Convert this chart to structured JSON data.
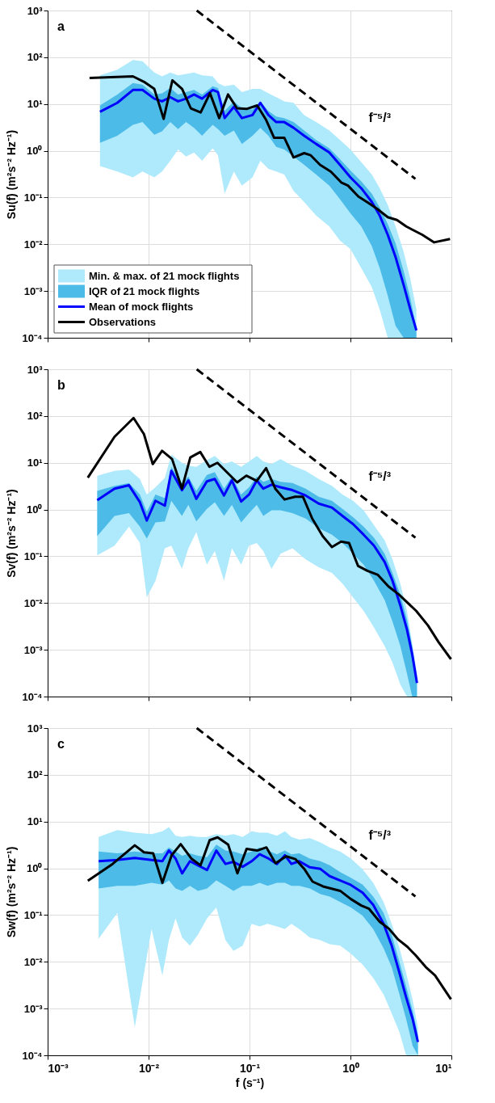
{
  "chart_data": [
    {
      "type": "line",
      "title": "a",
      "ylabel": "Su(f) (m²s⁻² Hz⁻¹)",
      "log": "xy",
      "grid": true,
      "tick_labels": "y",
      "legend": "bottom left",
      "xlim": [
        0.001,
        10
      ],
      "ylim": [
        0.0001,
        1000
      ],
      "xticks": [
        {
          "value": 0.001,
          "label": null
        },
        {
          "value": 0.01,
          "label": null
        },
        {
          "value": 0.1,
          "label": null
        },
        {
          "value": 1,
          "label": null
        },
        {
          "value": 10,
          "label": null
        }
      ],
      "yticks": [
        {
          "value": 0.0001,
          "label": "10⁻⁴"
        },
        {
          "value": 0.001,
          "label": "10⁻³"
        },
        {
          "value": 0.01,
          "label": "10⁻²"
        },
        {
          "value": 0.1,
          "label": "10⁻¹"
        },
        {
          "value": 1,
          "label": "10⁰"
        },
        {
          "value": 10,
          "label": "10¹"
        },
        {
          "value": 100,
          "label": "10²"
        },
        {
          "value": 1000,
          "label": "10³"
        }
      ],
      "series": [
        {
          "name": "Min. & max. of 21 mock flights",
          "type": "area",
          "color": "#aeeafc",
          "x": [
            0.0033,
            0.0049,
            0.007,
            0.0087,
            0.0114,
            0.0136,
            0.0164,
            0.0196,
            0.0235,
            0.0282,
            0.0339,
            0.0432,
            0.0487,
            0.0567,
            0.07,
            0.084,
            0.107,
            0.128,
            0.154,
            0.184,
            0.221,
            0.273,
            0.348,
            0.457,
            0.618,
            0.787,
            1.0,
            1.28,
            1.63,
            1.95,
            2.34,
            2.8,
            3.36,
            3.92,
            4.5
          ],
          "values": [
            null,
            null,
            null,
            null,
            null,
            null,
            null,
            null,
            null,
            null,
            null,
            null,
            null,
            null,
            null,
            null,
            null,
            null,
            null,
            null,
            null,
            null,
            null,
            null,
            null,
            null,
            null,
            null,
            null,
            null,
            null,
            null,
            null,
            null,
            null
          ],
          "upper": [
            41,
            54,
            87,
            82,
            47,
            39,
            47,
            41,
            44,
            47,
            41,
            39,
            28,
            24,
            26,
            18,
            21,
            21,
            17,
            14,
            11.4,
            10.6,
            5.8,
            4.1,
            2.7,
            1.7,
            1.06,
            0.57,
            0.31,
            0.158,
            0.07,
            0.024,
            0.0069,
            0.0018,
            0.0004
          ],
          "lower": [
            0.47,
            0.36,
            0.27,
            0.36,
            0.27,
            0.36,
            0.61,
            1.06,
            0.75,
            0.92,
            0.61,
            1.13,
            0.8,
            0.12,
            0.36,
            0.18,
            0.27,
            0.61,
            0.41,
            0.36,
            0.31,
            0.138,
            0.08,
            0.041,
            0.024,
            0.012,
            0.0079,
            0.0031,
            0.0012,
            0.0004,
            0.0001,
            0.0001,
            0.0001,
            0.0001,
            0.0001
          ]
        },
        {
          "name": "IQR of 21 mock flights",
          "type": "area",
          "color": "#4dbbe8",
          "x": [
            0.0033,
            0.0049,
            0.007,
            0.0087,
            0.0114,
            0.0136,
            0.0164,
            0.0196,
            0.0235,
            0.0282,
            0.0339,
            0.0432,
            0.0487,
            0.0567,
            0.07,
            0.084,
            0.107,
            0.128,
            0.154,
            0.184,
            0.221,
            0.273,
            0.348,
            0.457,
            0.618,
            0.787,
            1.0,
            1.28,
            1.63,
            1.95,
            2.34,
            2.8,
            3.36,
            3.92,
            4.5
          ],
          "values": [
            null,
            null,
            null,
            null,
            null,
            null,
            null,
            null,
            null,
            null,
            null,
            null,
            null,
            null,
            null,
            null,
            null,
            null,
            null,
            null,
            null,
            null,
            null,
            null,
            null,
            null,
            null,
            null,
            null,
            null,
            null,
            null,
            null,
            null,
            null
          ],
          "upper": [
            9.3,
            16,
            28,
            26,
            16,
            17,
            22,
            16,
            18,
            20,
            16,
            24,
            22,
            7.1,
            11.4,
            8.1,
            7.6,
            11.4,
            7.1,
            5.4,
            5.0,
            4.1,
            2.7,
            1.7,
            1.13,
            0.66,
            0.38,
            0.22,
            0.12,
            0.061,
            0.027,
            0.0104,
            0.0027,
            0.0007,
            0.000155
          ],
          "lower": [
            1.48,
            2.1,
            3.6,
            4.1,
            2.2,
            2.6,
            4.1,
            2.9,
            4.1,
            3.1,
            2.1,
            3.6,
            2.9,
            2.1,
            2.7,
            1.39,
            2.1,
            3.1,
            2.1,
            1.21,
            1.06,
            0.75,
            0.5,
            0.31,
            0.18,
            0.092,
            0.046,
            0.024,
            0.0091,
            0.0031,
            0.0008,
            0.00018,
            0.0001,
            0.0001,
            0.0001
          ]
        },
        {
          "name": "Mean of mock flights",
          "type": "line",
          "color": "#0000ff",
          "x": [
            0.0033,
            0.0049,
            0.007,
            0.0087,
            0.0114,
            0.0136,
            0.0164,
            0.0196,
            0.0235,
            0.0282,
            0.0339,
            0.0432,
            0.0487,
            0.0567,
            0.07,
            0.084,
            0.107,
            0.128,
            0.154,
            0.184,
            0.221,
            0.273,
            0.348,
            0.457,
            0.618,
            0.787,
            1.0,
            1.28,
            1.63,
            1.95,
            2.34,
            2.8,
            3.36,
            3.92,
            4.5
          ],
          "values": [
            6.8,
            10.6,
            20,
            20,
            13,
            11.4,
            14,
            11.4,
            13,
            16,
            13,
            20,
            18,
            5.0,
            8.7,
            5.0,
            5.8,
            10.6,
            5.8,
            4.1,
            4.1,
            3.1,
            2.1,
            1.4,
            0.92,
            0.5,
            0.27,
            0.158,
            0.08,
            0.041,
            0.016,
            0.0053,
            0.00136,
            0.0004,
            0.000144
          ]
        },
        {
          "name": "Observations",
          "type": "line",
          "color": "#000000",
          "x": [
            0.0026,
            0.007,
            0.0092,
            0.0114,
            0.0141,
            0.0172,
            0.0215,
            0.0262,
            0.0328,
            0.0406,
            0.0501,
            0.0612,
            0.0752,
            0.0946,
            0.119,
            0.145,
            0.175,
            0.221,
            0.273,
            0.348,
            0.404,
            0.5,
            0.637,
            0.811,
            0.944,
            1.2,
            1.49,
            1.84,
            2.34,
            2.89,
            3.57,
            5.14,
            6.75,
            9.7
          ],
          "values": [
            36,
            39,
            29,
            21,
            4.8,
            32,
            21,
            8.1,
            6.6,
            17,
            5.0,
            16,
            8.1,
            7.9,
            9.3,
            4.7,
            1.9,
            1.9,
            0.72,
            0.89,
            0.8,
            0.5,
            0.36,
            0.21,
            0.18,
            0.105,
            0.078,
            0.057,
            0.038,
            0.033,
            0.024,
            0.016,
            0.011,
            0.013
          ]
        },
        {
          "name": "f⁻⁵/³",
          "type": "line",
          "color": "#000000",
          "line_style": "dashed",
          "x": [
            0.03,
            4.4
          ],
          "values": [
            1000,
            0.25
          ]
        }
      ]
    },
    {
      "type": "line",
      "title": "b",
      "ylabel": "Sv(f) (m²s⁻² Hz⁻¹)",
      "log": "xy",
      "grid": true,
      "tick_labels": "y",
      "xlim": [
        0.001,
        10
      ],
      "ylim": [
        0.0001,
        1000
      ],
      "xticks": [
        {
          "value": 0.001,
          "label": null
        },
        {
          "value": 0.01,
          "label": null
        },
        {
          "value": 0.1,
          "label": null
        },
        {
          "value": 1,
          "label": null
        },
        {
          "value": 10,
          "label": null
        }
      ],
      "yticks": [
        {
          "value": 0.0001,
          "label": "10⁻⁴"
        },
        {
          "value": 0.001,
          "label": "10⁻³"
        },
        {
          "value": 0.01,
          "label": "10⁻²"
        },
        {
          "value": 0.1,
          "label": "10⁻¹"
        },
        {
          "value": 1,
          "label": "10⁰"
        },
        {
          "value": 10,
          "label": "10¹"
        },
        {
          "value": 100,
          "label": "10²"
        },
        {
          "value": 1000,
          "label": "10³"
        }
      ],
      "series": [
        {
          "type": "area",
          "color": "#aeeafc",
          "x": [
            0.0031,
            0.0046,
            0.0064,
            0.0082,
            0.0096,
            0.0117,
            0.0145,
            0.0168,
            0.0214,
            0.0248,
            0.0297,
            0.0378,
            0.0453,
            0.0559,
            0.0669,
            0.0826,
            0.099,
            0.118,
            0.137,
            0.165,
            0.203,
            0.266,
            0.36,
            0.485,
            0.655,
            0.834,
            1.06,
            1.35,
            1.71,
            2.18,
            2.61,
            3.12,
            3.63,
            4.09,
            4.56
          ],
          "values": [
            null,
            null,
            null,
            null,
            null,
            null,
            null,
            null,
            null,
            null,
            null,
            null,
            null,
            null,
            null,
            null,
            null,
            null,
            null,
            null,
            null,
            null,
            null,
            null,
            null,
            null,
            null,
            null,
            null,
            null,
            null,
            null,
            null,
            null,
            null
          ],
          "upper": [
            5.3,
            6.7,
            7.2,
            4.5,
            2.1,
            3.0,
            4.8,
            15,
            10,
            8.7,
            8.2,
            11.4,
            14,
            9.4,
            10.7,
            8.2,
            10.7,
            14,
            10.7,
            9.4,
            12,
            8.7,
            6.7,
            4.5,
            3.2,
            2.1,
            1.54,
            0.96,
            0.46,
            0.22,
            0.086,
            0.026,
            0.0068,
            0.00136,
            0.00031
          ],
          "lower": [
            0.105,
            0.169,
            0.43,
            0.193,
            0.0132,
            0.03,
            0.148,
            0.169,
            0.054,
            0.148,
            0.33,
            0.066,
            0.129,
            0.03,
            0.148,
            0.066,
            0.169,
            0.193,
            0.129,
            0.054,
            0.113,
            0.148,
            0.086,
            0.058,
            0.044,
            0.026,
            0.0132,
            0.0068,
            0.003,
            0.0012,
            0.00053,
            0.00018,
            0.0001,
            0.0001,
            0.0001
          ]
        },
        {
          "type": "area",
          "color": "#4dbbe8",
          "x": [
            0.0031,
            0.0046,
            0.0064,
            0.0082,
            0.0096,
            0.0117,
            0.0145,
            0.0168,
            0.0214,
            0.0248,
            0.0297,
            0.0378,
            0.0453,
            0.0559,
            0.0669,
            0.0826,
            0.099,
            0.118,
            0.137,
            0.165,
            0.203,
            0.266,
            0.36,
            0.485,
            0.655,
            0.834,
            1.06,
            1.35,
            1.71,
            2.18,
            2.61,
            3.12,
            3.63,
            4.09,
            4.56
          ],
          "values": [
            null,
            null,
            null,
            null,
            null,
            null,
            null,
            null,
            null,
            null,
            null,
            null,
            null,
            null,
            null,
            null,
            null,
            null,
            null,
            null,
            null,
            null,
            null,
            null,
            null,
            null,
            null,
            null,
            null,
            null,
            null,
            null,
            null,
            null,
            null
          ],
          "upper": [
            2.5,
            3.2,
            3.7,
            2.1,
            0.9,
            2.1,
            1.75,
            8.2,
            3.7,
            5.1,
            2.5,
            5.5,
            6.3,
            2.8,
            5.1,
            2.1,
            3.0,
            5.1,
            3.9,
            4.5,
            3.9,
            3.7,
            2.8,
            1.88,
            1.54,
            1.03,
            0.69,
            0.43,
            0.25,
            0.113,
            0.044,
            0.0151,
            0.0045,
            0.0012,
            0.00024
          ],
          "lower": [
            0.27,
            0.73,
            0.84,
            0.43,
            0.24,
            0.53,
            0.56,
            1.54,
            0.73,
            1.26,
            0.56,
            1.03,
            1.44,
            0.73,
            1.26,
            0.53,
            0.84,
            1.26,
            0.73,
            0.96,
            0.96,
            0.84,
            0.64,
            0.4,
            0.29,
            0.193,
            0.113,
            0.066,
            0.03,
            0.0116,
            0.004,
            0.0012,
            0.00031,
            0.0001,
            0.0001
          ]
        },
        {
          "type": "line",
          "color": "#0000ff",
          "x": [
            0.0031,
            0.0046,
            0.0064,
            0.0082,
            0.0096,
            0.0117,
            0.0145,
            0.0168,
            0.0214,
            0.0248,
            0.0297,
            0.0378,
            0.0453,
            0.0559,
            0.0669,
            0.0826,
            0.099,
            0.118,
            0.137,
            0.165,
            0.203,
            0.266,
            0.36,
            0.485,
            0.655,
            0.834,
            1.06,
            1.35,
            1.71,
            2.18,
            2.61,
            3.12,
            3.63,
            4.09,
            4.56
          ],
          "values": [
            1.58,
            2.8,
            3.3,
            1.44,
            0.58,
            1.54,
            1.21,
            6.7,
            2.6,
            4.2,
            1.69,
            4.0,
            4.5,
            2.0,
            4.2,
            1.48,
            2.1,
            4.2,
            2.8,
            3.4,
            3.0,
            2.6,
            2.0,
            1.34,
            1.1,
            0.73,
            0.49,
            0.29,
            0.169,
            0.076,
            0.03,
            0.0089,
            0.0027,
            0.0008,
            0.000195
          ]
        },
        {
          "type": "line",
          "color": "#000000",
          "x": [
            0.0025,
            0.0046,
            0.0071,
            0.009,
            0.011,
            0.0136,
            0.0171,
            0.0214,
            0.0259,
            0.0325,
            0.0401,
            0.0481,
            0.0755,
            0.093,
            0.118,
            0.146,
            0.18,
            0.222,
            0.283,
            0.338,
            0.418,
            0.531,
            0.655,
            0.807,
            0.968,
            1.19,
            1.47,
            1.87,
            2.38,
            3.03,
            4.48,
            5.87,
            7.46,
            9.9
          ],
          "values": [
            4.8,
            36,
            91,
            41,
            9.4,
            18,
            12,
            2.8,
            13,
            17,
            8.2,
            10,
            3.8,
            5.3,
            4.1,
            7.7,
            2.8,
            1.64,
            1.88,
            1.88,
            0.64,
            0.27,
            0.158,
            0.206,
            0.193,
            0.062,
            0.049,
            0.04,
            0.0226,
            0.0151,
            0.0068,
            0.0033,
            0.00146,
            0.00063
          ]
        },
        {
          "name": "f⁻⁵/³",
          "type": "line",
          "color": "#000000",
          "line_style": "dashed",
          "x": [
            0.03,
            4.4
          ],
          "values": [
            1000,
            0.25
          ]
        }
      ]
    },
    {
      "type": "line",
      "title": "c",
      "xlabel": "f (s⁻¹)",
      "ylabel": "Sw(f) (m²s⁻² Hz⁻¹)",
      "log": "xy",
      "grid": true,
      "xlim": [
        0.001,
        10
      ],
      "ylim": [
        0.0001,
        1000
      ],
      "xticks": [
        {
          "value": 0.001,
          "label": "10⁻³"
        },
        {
          "value": 0.01,
          "label": "10⁻²"
        },
        {
          "value": 0.1,
          "label": "10⁻¹"
        },
        {
          "value": 1,
          "label": "10⁰"
        },
        {
          "value": 10,
          "label": "10¹"
        }
      ],
      "yticks": [
        {
          "value": 0.0001,
          "label": "10⁻⁴"
        },
        {
          "value": 0.001,
          "label": "10⁻³"
        },
        {
          "value": 0.01,
          "label": "10⁻²"
        },
        {
          "value": 0.1,
          "label": "10⁻¹"
        },
        {
          "value": 1,
          "label": "10⁰"
        },
        {
          "value": 10,
          "label": "10¹"
        },
        {
          "value": 100,
          "label": "10²"
        },
        {
          "value": 1000,
          "label": "10³"
        }
      ],
      "series": [
        {
          "type": "area",
          "color": "#aeeafc",
          "x": [
            0.0032,
            0.0049,
            0.0073,
            0.0107,
            0.0137,
            0.0159,
            0.0185,
            0.0215,
            0.0257,
            0.0308,
            0.038,
            0.0469,
            0.0578,
            0.0693,
            0.0855,
            0.105,
            0.126,
            0.151,
            0.187,
            0.224,
            0.26,
            0.311,
            0.396,
            0.504,
            0.622,
            0.791,
            1.01,
            1.32,
            1.68,
            2.13,
            2.56,
            3.06,
            3.56,
            4.13,
            4.66
          ],
          "values": [
            null,
            null,
            null,
            null,
            null,
            null,
            null,
            null,
            null,
            null,
            null,
            null,
            null,
            null,
            null,
            null,
            null,
            null,
            null,
            null,
            null,
            null,
            null,
            null,
            null,
            null,
            null,
            null,
            null,
            null,
            null,
            null,
            null,
            null,
            null
          ],
          "upper": [
            4.7,
            6.6,
            5.8,
            5.4,
            6.2,
            7.6,
            5.0,
            4.7,
            5.0,
            4.7,
            4.7,
            5.4,
            5.0,
            5.4,
            4.7,
            6.2,
            5.8,
            5.8,
            5.0,
            6.2,
            4.7,
            4.1,
            4.4,
            3.6,
            2.8,
            2.3,
            1.62,
            0.95,
            0.49,
            0.19,
            0.065,
            0.0195,
            0.0058,
            0.00153,
            0.0004
          ],
          "lower": [
            0.031,
            0.111,
            0.0004,
            0.05,
            0.0051,
            0.029,
            0.085,
            0.033,
            0.0223,
            0.038,
            0.085,
            0.146,
            0.029,
            0.0171,
            0.0223,
            0.065,
            0.057,
            0.065,
            0.057,
            0.05,
            0.065,
            0.05,
            0.033,
            0.029,
            0.0239,
            0.0223,
            0.0149,
            0.0087,
            0.0045,
            0.002,
            0.00079,
            0.00031,
            0.0001,
            0.0001,
            0.0001
          ]
        },
        {
          "type": "area",
          "color": "#4dbbe8",
          "x": [
            0.0032,
            0.0049,
            0.0073,
            0.0107,
            0.0137,
            0.0159,
            0.0185,
            0.0215,
            0.0257,
            0.0308,
            0.038,
            0.0469,
            0.0578,
            0.0693,
            0.0855,
            0.105,
            0.126,
            0.151,
            0.187,
            0.224,
            0.26,
            0.311,
            0.396,
            0.504,
            0.622,
            0.791,
            1.01,
            1.32,
            1.68,
            2.13,
            2.56,
            3.06,
            3.56,
            4.13,
            4.66
          ],
          "values": [
            null,
            null,
            null,
            null,
            null,
            null,
            null,
            null,
            null,
            null,
            null,
            null,
            null,
            null,
            null,
            null,
            null,
            null,
            null,
            null,
            null,
            null,
            null,
            null,
            null,
            null,
            null,
            null,
            null,
            null,
            null,
            null,
            null,
            null,
            null
          ],
          "upper": [
            2.3,
            2.1,
            2.3,
            2.1,
            2.1,
            2.8,
            2.3,
            1.85,
            2.1,
            1.85,
            1.73,
            3.2,
            2.4,
            2.3,
            2.0,
            2.3,
            2.8,
            2.4,
            2.0,
            2.4,
            2.0,
            2.1,
            1.62,
            1.42,
            1.16,
            0.83,
            0.63,
            0.45,
            0.25,
            0.111,
            0.038,
            0.01,
            0.003,
            0.0009,
            0.00027
          ],
          "lower": [
            0.37,
            0.42,
            0.42,
            0.49,
            0.45,
            0.55,
            0.37,
            0.33,
            0.42,
            0.33,
            0.37,
            0.55,
            0.42,
            0.33,
            0.42,
            0.42,
            0.49,
            0.42,
            0.49,
            0.49,
            0.42,
            0.42,
            0.37,
            0.28,
            0.25,
            0.19,
            0.146,
            0.097,
            0.05,
            0.0195,
            0.0077,
            0.002,
            0.0006,
            0.00016,
            0.0001
          ]
        },
        {
          "type": "line",
          "color": "#0000ff",
          "x": [
            0.0032,
            0.0049,
            0.0073,
            0.0107,
            0.0137,
            0.0159,
            0.0185,
            0.0215,
            0.0257,
            0.0308,
            0.038,
            0.0469,
            0.0578,
            0.0693,
            0.0855,
            0.105,
            0.126,
            0.151,
            0.187,
            0.224,
            0.26,
            0.311,
            0.396,
            0.504,
            0.622,
            0.791,
            1.01,
            1.32,
            1.68,
            2.13,
            2.56,
            3.06,
            3.56,
            4.13,
            4.66
          ],
          "values": [
            1.42,
            1.51,
            1.66,
            1.51,
            1.42,
            2.4,
            1.62,
            0.78,
            1.42,
            1.16,
            0.92,
            2.4,
            1.24,
            1.38,
            1.08,
            1.42,
            2.0,
            1.66,
            1.24,
            1.9,
            1.24,
            1.42,
            1.05,
            0.97,
            0.68,
            0.55,
            0.44,
            0.3,
            0.166,
            0.065,
            0.0223,
            0.0058,
            0.00175,
            0.0006,
            0.000193
          ]
        },
        {
          "type": "line",
          "color": "#000000",
          "x": [
            0.0025,
            0.0044,
            0.0073,
            0.009,
            0.0111,
            0.0137,
            0.0169,
            0.0208,
            0.0265,
            0.0327,
            0.0403,
            0.0483,
            0.0615,
            0.0759,
            0.0935,
            0.119,
            0.147,
            0.181,
            0.231,
            0.284,
            0.351,
            0.421,
            0.535,
            0.791,
            1.01,
            1.28,
            1.53,
            1.95,
            2.41,
            2.97,
            3.67,
            4.39,
            5.58,
            6.89,
            9.9
          ],
          "values": [
            0.54,
            1.24,
            3.1,
            2.2,
            2.1,
            0.49,
            1.9,
            3.3,
            1.62,
            1.16,
            4.0,
            4.6,
            3.2,
            0.78,
            2.6,
            2.4,
            2.8,
            1.29,
            1.8,
            1.58,
            0.95,
            0.52,
            0.41,
            0.33,
            0.22,
            0.16,
            0.136,
            0.072,
            0.051,
            0.03,
            0.0209,
            0.014,
            0.0077,
            0.0051,
            0.00158
          ]
        },
        {
          "name": "f⁻⁵/³",
          "type": "line",
          "color": "#000000",
          "line_style": "dashed",
          "x": [
            0.03,
            4.4
          ],
          "values": [
            1000,
            0.25
          ]
        }
      ]
    }
  ]
}
